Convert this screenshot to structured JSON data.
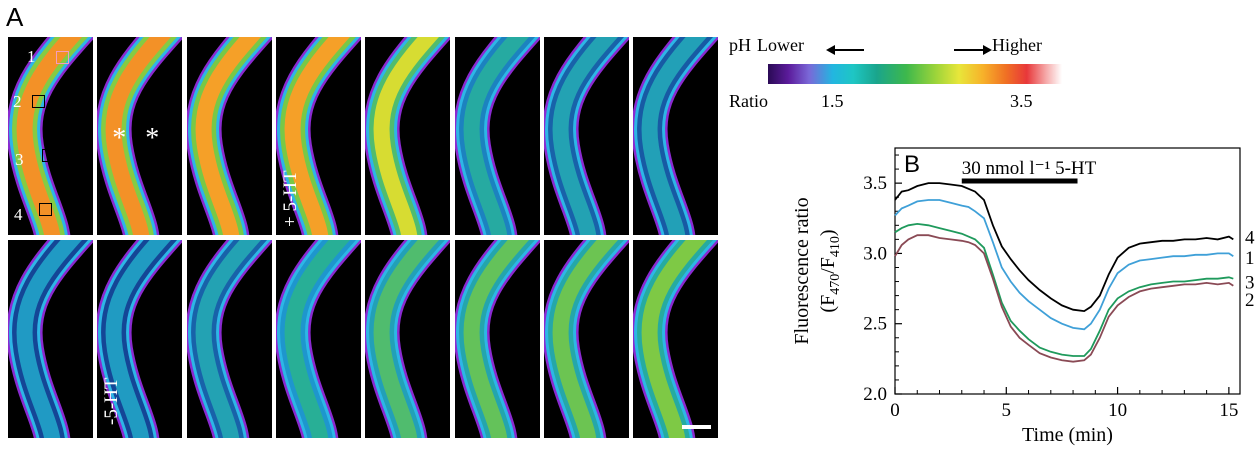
{
  "panel_a": {
    "label": "A",
    "tiles": [
      {
        "frame": 1,
        "row": 1,
        "level": 0.92,
        "overlay_text": ""
      },
      {
        "frame": 2,
        "row": 1,
        "level": 0.92,
        "overlay_text": "* *"
      },
      {
        "frame": 3,
        "row": 1,
        "level": 0.9,
        "overlay_text": ""
      },
      {
        "frame": 4,
        "row": 1,
        "level": 0.9,
        "overlay_text": "+ 5-HT"
      },
      {
        "frame": 5,
        "row": 1,
        "level": 0.8,
        "overlay_text": ""
      },
      {
        "frame": 6,
        "row": 1,
        "level": 0.4,
        "overlay_text": ""
      },
      {
        "frame": 7,
        "row": 1,
        "level": 0.32,
        "overlay_text": ""
      },
      {
        "frame": 8,
        "row": 1,
        "level": 0.3,
        "overlay_text": ""
      },
      {
        "frame": 9,
        "row": 2,
        "level": 0.24,
        "overlay_text": ""
      },
      {
        "frame": 10,
        "row": 2,
        "level": 0.25,
        "overlay_text": "-5-HT"
      },
      {
        "frame": 11,
        "row": 2,
        "level": 0.32,
        "overlay_text": ""
      },
      {
        "frame": 12,
        "row": 2,
        "level": 0.45,
        "overlay_text": ""
      },
      {
        "frame": 13,
        "row": 2,
        "level": 0.55,
        "overlay_text": ""
      },
      {
        "frame": 14,
        "row": 2,
        "level": 0.6,
        "overlay_text": ""
      },
      {
        "frame": 15,
        "row": 2,
        "level": 0.62,
        "overlay_text": ""
      },
      {
        "frame": 16,
        "row": 2,
        "level": 0.66,
        "overlay_text": ""
      }
    ],
    "roi_labels": [
      "1",
      "2",
      "3",
      "4"
    ]
  },
  "colorbar": {
    "ph_label": "pH",
    "lower_label": "Lower",
    "higher_label": "Higher",
    "ratio_label": "Ratio",
    "min_tick": "1.5",
    "max_tick": "3.5"
  },
  "chart_data": {
    "type": "line",
    "panel_label": "B",
    "xlabel": "Time (min)",
    "ylabel": "Fluorescence ratio",
    "ylabel_sub": "(F470/F410)",
    "xlim": [
      0,
      15.5
    ],
    "ylim": [
      2.0,
      3.75
    ],
    "xticks": [
      "0",
      "5",
      "10",
      "15"
    ],
    "yticks": [
      "2.0",
      "2.5",
      "3.0",
      "3.5"
    ],
    "annotation": "30 nmol l⁻¹ 5-HT",
    "treatment_interval": [
      3.0,
      8.2
    ],
    "grid": false,
    "series": [
      {
        "name": "4",
        "color": "#000000",
        "x": [
          0,
          0.3,
          0.6,
          1.0,
          1.5,
          2.0,
          2.5,
          3.0,
          3.3,
          3.6,
          4.0,
          4.4,
          4.8,
          5.2,
          5.6,
          6.0,
          6.5,
          7.0,
          7.5,
          8.0,
          8.5,
          8.8,
          9.2,
          9.6,
          10.0,
          10.5,
          11.0,
          11.5,
          12.0,
          12.5,
          13.0,
          13.5,
          14.0,
          14.5,
          15.0,
          15.2
        ],
        "y": [
          3.38,
          3.44,
          3.45,
          3.48,
          3.5,
          3.5,
          3.49,
          3.48,
          3.46,
          3.44,
          3.38,
          3.2,
          3.05,
          2.96,
          2.88,
          2.81,
          2.74,
          2.68,
          2.63,
          2.6,
          2.59,
          2.62,
          2.7,
          2.85,
          2.97,
          3.04,
          3.07,
          3.08,
          3.09,
          3.09,
          3.1,
          3.1,
          3.11,
          3.1,
          3.12,
          3.1
        ]
      },
      {
        "name": "1",
        "color": "#3fa0d8",
        "x": [
          0,
          0.3,
          0.6,
          1.0,
          1.5,
          2.0,
          2.5,
          3.0,
          3.3,
          3.6,
          4.0,
          4.4,
          4.8,
          5.2,
          5.6,
          6.0,
          6.5,
          7.0,
          7.5,
          8.0,
          8.5,
          8.8,
          9.2,
          9.6,
          10.0,
          10.5,
          11.0,
          11.5,
          12.0,
          12.5,
          13.0,
          13.5,
          14.0,
          14.5,
          15.0,
          15.2
        ],
        "y": [
          3.27,
          3.32,
          3.34,
          3.37,
          3.38,
          3.38,
          3.36,
          3.34,
          3.33,
          3.3,
          3.25,
          3.08,
          2.9,
          2.8,
          2.72,
          2.66,
          2.6,
          2.54,
          2.5,
          2.47,
          2.46,
          2.5,
          2.6,
          2.75,
          2.86,
          2.92,
          2.95,
          2.96,
          2.97,
          2.98,
          2.98,
          2.99,
          2.99,
          3.0,
          3.0,
          2.98
        ]
      },
      {
        "name": "3",
        "color": "#1f9a5c",
        "x": [
          0,
          0.3,
          0.6,
          1.0,
          1.5,
          2.0,
          2.5,
          3.0,
          3.3,
          3.6,
          4.0,
          4.4,
          4.8,
          5.2,
          5.6,
          6.0,
          6.5,
          7.0,
          7.5,
          8.0,
          8.5,
          8.8,
          9.2,
          9.6,
          10.0,
          10.5,
          11.0,
          11.5,
          12.0,
          12.5,
          13.0,
          13.5,
          14.0,
          14.5,
          15.0,
          15.2
        ],
        "y": [
          3.15,
          3.18,
          3.2,
          3.21,
          3.2,
          3.18,
          3.16,
          3.14,
          3.12,
          3.1,
          3.04,
          2.85,
          2.65,
          2.52,
          2.45,
          2.39,
          2.33,
          2.3,
          2.28,
          2.27,
          2.27,
          2.32,
          2.45,
          2.6,
          2.68,
          2.73,
          2.76,
          2.78,
          2.79,
          2.8,
          2.8,
          2.81,
          2.82,
          2.82,
          2.83,
          2.82
        ]
      },
      {
        "name": "2",
        "color": "#8a4a55",
        "x": [
          0,
          0.3,
          0.6,
          1.0,
          1.5,
          2.0,
          2.5,
          3.0,
          3.3,
          3.6,
          4.0,
          4.4,
          4.8,
          5.2,
          5.6,
          6.0,
          6.5,
          7.0,
          7.5,
          8.0,
          8.5,
          8.8,
          9.2,
          9.6,
          10.0,
          10.5,
          11.0,
          11.5,
          12.0,
          12.5,
          13.0,
          13.5,
          14.0,
          14.5,
          15.0,
          15.2
        ],
        "y": [
          2.98,
          3.06,
          3.1,
          3.13,
          3.13,
          3.11,
          3.1,
          3.09,
          3.08,
          3.06,
          3.0,
          2.82,
          2.62,
          2.48,
          2.4,
          2.35,
          2.29,
          2.26,
          2.24,
          2.23,
          2.24,
          2.28,
          2.4,
          2.55,
          2.63,
          2.69,
          2.73,
          2.75,
          2.76,
          2.77,
          2.78,
          2.78,
          2.79,
          2.78,
          2.79,
          2.77
        ]
      }
    ]
  }
}
